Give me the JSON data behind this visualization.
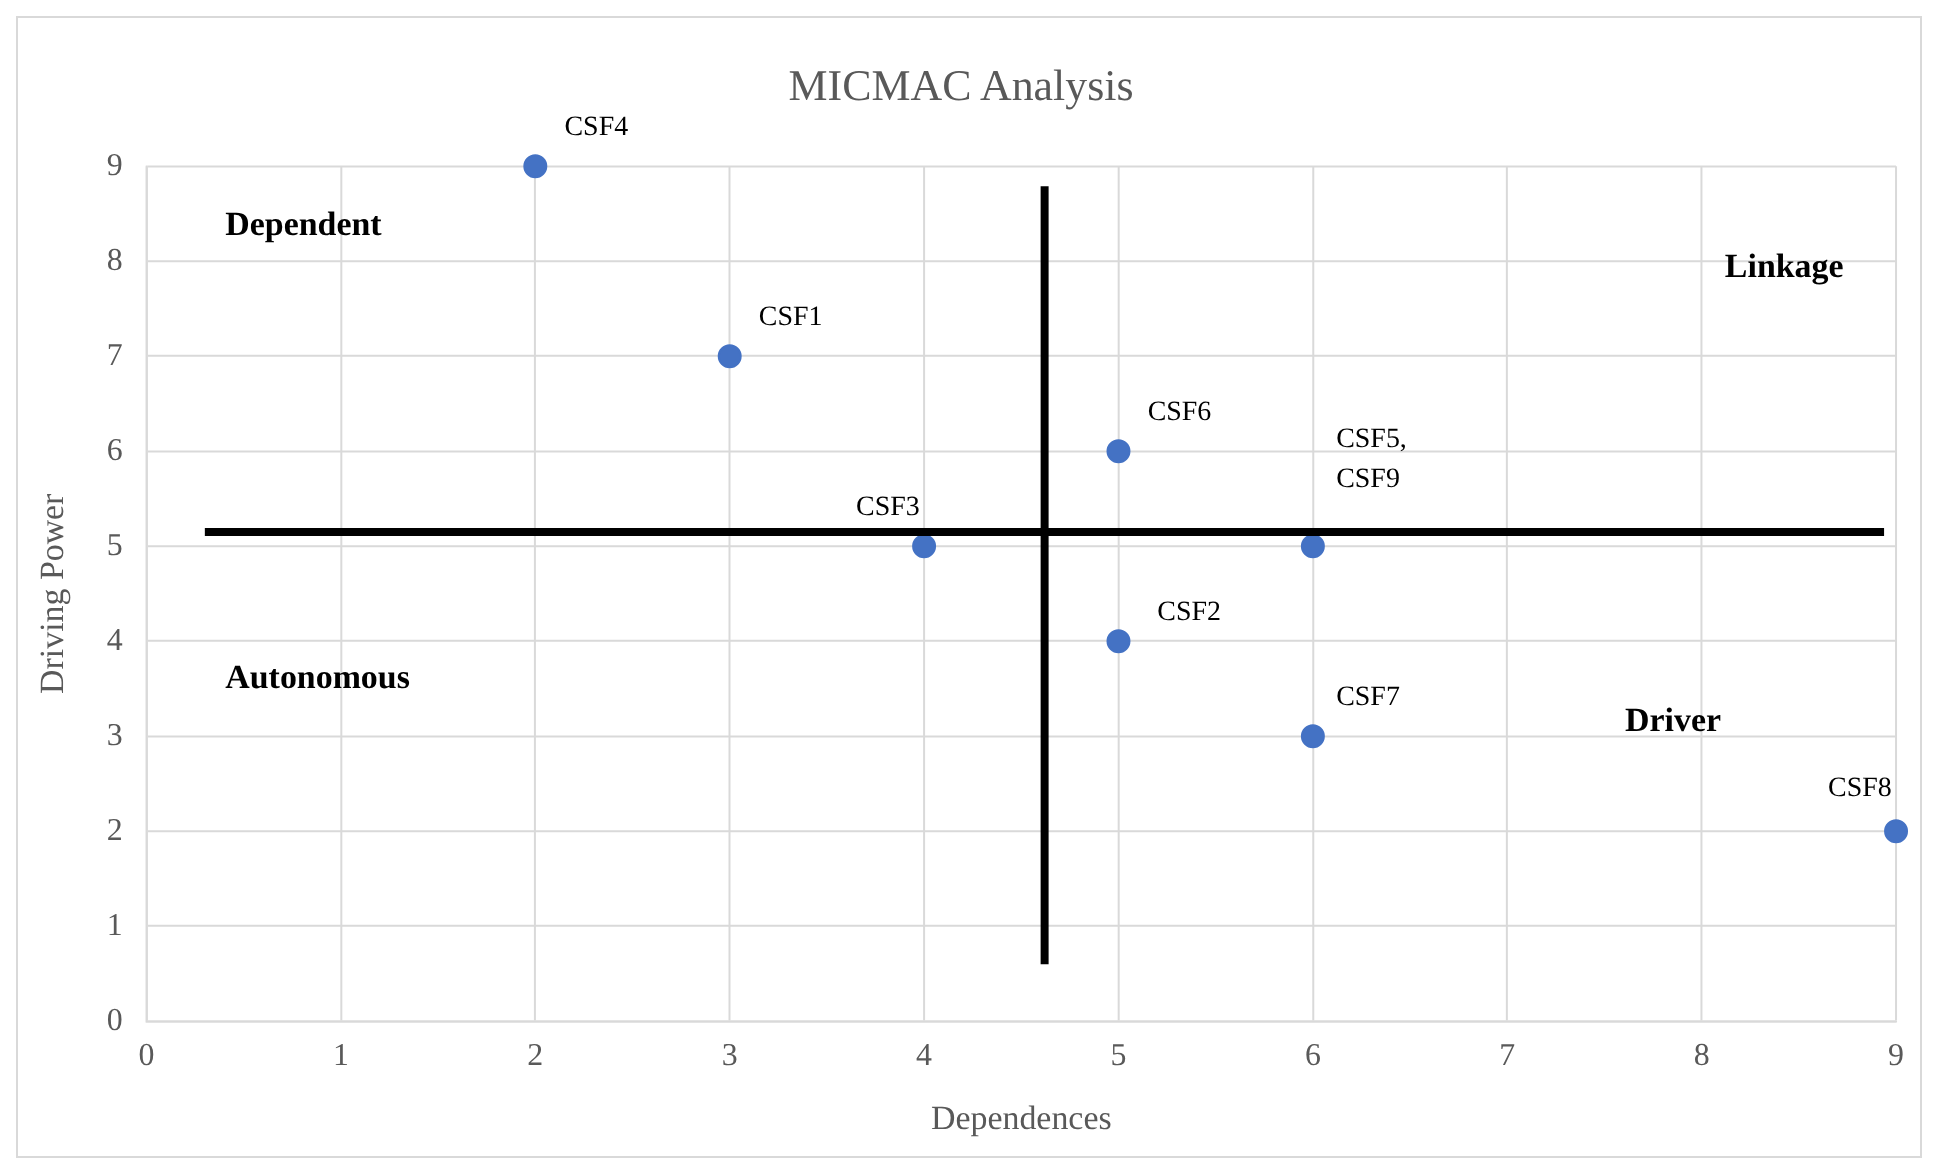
{
  "chart_data": {
    "type": "scatter",
    "title": "MICMAC Analysis",
    "xlabel": "Dependences",
    "ylabel": "Driving Power",
    "series": [
      {
        "color": "#4472c4",
        "x": [
          3,
          5,
          4,
          2,
          6,
          5,
          6,
          9
        ],
        "values": [
          7,
          4,
          5,
          9,
          5,
          6,
          3,
          2
        ]
      }
    ],
    "xlim": [
      0,
      9
    ],
    "xticks": [
      0,
      1,
      2,
      3,
      4,
      5,
      6,
      7,
      8,
      9
    ],
    "ylim": [
      0,
      9
    ],
    "yticks": [
      0,
      1,
      2,
      3,
      4,
      5,
      6,
      7,
      8,
      9
    ],
    "grid": true,
    "legend": false,
    "marker": "circle",
    "ref_lines": [
      {
        "axis": "x",
        "value": 4.62,
        "color": "#000000"
      },
      {
        "axis": "y",
        "value": 5.15,
        "color": "#000000"
      }
    ],
    "annotations": [
      {
        "text": "CSF1",
        "x": 3,
        "y": 7
      },
      {
        "text": "CSF2",
        "x": 5,
        "y": 4
      },
      {
        "text": "CSF3",
        "x": 4,
        "y": 5
      },
      {
        "text": "CSF4",
        "x": 2,
        "y": 9
      },
      {
        "text": "CSF5,\nCSF9",
        "x": 6,
        "y": 5
      },
      {
        "text": "CSF6",
        "x": 5,
        "y": 6
      },
      {
        "text": "CSF7",
        "x": 6,
        "y": 3
      },
      {
        "text": "CSF8",
        "x": 9,
        "y": 2
      },
      "Dependent",
      "Linkage",
      "Autonomous",
      "Driver"
    ]
  }
}
